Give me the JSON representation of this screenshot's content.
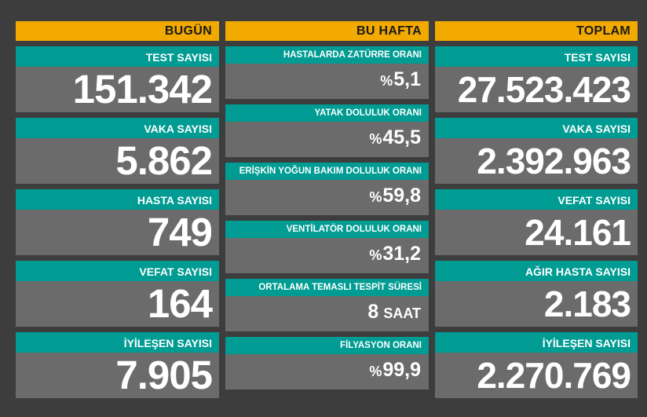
{
  "today": {
    "header": "BUGÜN",
    "items": [
      {
        "label": "TEST SAYISI",
        "value": "151.342"
      },
      {
        "label": "VAKA SAYISI",
        "value": "5.862"
      },
      {
        "label": "HASTA SAYISI",
        "value": "749"
      },
      {
        "label": "VEFAT SAYISI",
        "value": "164"
      },
      {
        "label": "İYİLEŞEN SAYISI",
        "value": "7.905"
      }
    ]
  },
  "week": {
    "header": "BU HAFTA",
    "items": [
      {
        "label": "HASTALARDA ZATÜRRE ORANI",
        "prefix": "%",
        "value": "5,1",
        "unit": ""
      },
      {
        "label": "YATAK DOLULUK ORANI",
        "prefix": "%",
        "value": "45,5",
        "unit": ""
      },
      {
        "label": "ERİŞKİN YOĞUN BAKIM DOLULUK ORANI",
        "prefix": "%",
        "value": "59,8",
        "unit": ""
      },
      {
        "label": "VENTİLATÖR DOLULUK ORANI",
        "prefix": "%",
        "value": "31,2",
        "unit": ""
      },
      {
        "label": "ORTALAMA TEMASLI TESPİT SÜRESİ",
        "prefix": "",
        "value": "8",
        "unit": "SAAT"
      },
      {
        "label": "FİLYASYON ORANI",
        "prefix": "%",
        "value": "99,9",
        "unit": ""
      }
    ]
  },
  "total": {
    "header": "TOPLAM",
    "items": [
      {
        "label": "TEST SAYISI",
        "value": "27.523.423"
      },
      {
        "label": "VAKA SAYISI",
        "value": "2.392.963"
      },
      {
        "label": "VEFAT SAYISI",
        "value": "24.161"
      },
      {
        "label": "AĞIR HASTA SAYISI",
        "value": "2.183"
      },
      {
        "label": "İYİLEŞEN SAYISI",
        "value": "2.270.769"
      }
    ]
  },
  "colors": {
    "background": "#3d3d3d",
    "header": "#f2a900",
    "label_bar": "#009c93",
    "card": "#6b6b6b",
    "text": "#ffffff"
  }
}
